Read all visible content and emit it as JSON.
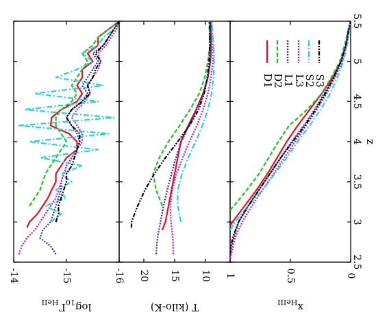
{
  "chart_data": {
    "type": "line",
    "orientation": "rotated-90-clockwise",
    "x_axis": {
      "label": "z",
      "range": [
        2.5,
        5.5
      ],
      "ticks": [
        "2.5",
        "3",
        "3.5",
        "4",
        "4.5",
        "5",
        "5.5"
      ]
    },
    "legend": {
      "placement": "inside-right-panel",
      "entries": [
        "D1",
        "D2",
        "L1",
        "L3",
        "S2",
        "S3"
      ]
    },
    "series_styles": [
      {
        "name": "D1",
        "color": "#e8101a",
        "dash": "solid"
      },
      {
        "name": "D2",
        "color": "#1fc21f",
        "dash": "dashed"
      },
      {
        "name": "L1",
        "color": "#2222dd",
        "dash": "dotted"
      },
      {
        "name": "L3",
        "color": "#e000e0",
        "dash": "dotted"
      },
      {
        "name": "S2",
        "color": "#22d2e8",
        "dash": "dash-dot"
      },
      {
        "name": "S3",
        "color": "#000000",
        "dash": "dash-dot-dot"
      }
    ],
    "panels": [
      {
        "ylabel": "log10 ΓHeII",
        "ylabel_main": "log",
        "ylabel_sub": "10",
        "ylabel_main2": "Γ",
        "ylabel_sub2": "HeII",
        "ylim": [
          -14,
          -16
        ],
        "yticks": [
          "-14",
          "-15",
          "-16"
        ],
        "series": [
          {
            "name": "D1",
            "x": [
              2.93,
              3.0,
              3.1,
              3.2,
              3.3,
              3.4,
              3.5,
              3.6,
              3.7,
              3.8,
              3.9,
              4.0,
              4.1,
              4.2,
              4.3,
              4.4,
              4.5,
              4.6,
              4.7,
              4.8,
              4.9,
              5.0,
              5.1,
              5.2,
              5.3,
              5.4,
              5.5
            ],
            "y": [
              -14.25,
              -14.3,
              -14.45,
              -14.55,
              -14.65,
              -14.72,
              -14.8,
              -14.8,
              -14.9,
              -15.0,
              -15.2,
              -15.2,
              -15.05,
              -14.7,
              -14.72,
              -14.9,
              -15.2,
              -15.3,
              -15.2,
              -15.3,
              -15.3,
              -15.5,
              -15.4,
              -15.6,
              -15.6,
              -15.8,
              -16.0
            ]
          },
          {
            "name": "D2",
            "x": [
              3.2,
              3.3,
              3.4,
              3.5,
              3.6,
              3.7,
              3.8,
              3.9,
              4.0,
              4.1,
              4.2,
              4.3,
              4.4,
              4.5,
              4.6,
              4.7,
              4.8,
              4.9,
              5.0,
              5.1,
              5.2,
              5.3,
              5.4,
              5.5
            ],
            "y": [
              -14.3,
              -14.4,
              -14.5,
              -14.55,
              -14.6,
              -14.7,
              -14.8,
              -14.9,
              -15.0,
              -14.9,
              -14.8,
              -14.8,
              -14.9,
              -15.1,
              -15.2,
              -15.1,
              -15.2,
              -15.3,
              -15.4,
              -15.3,
              -15.5,
              -15.6,
              -15.8,
              -16.0
            ]
          },
          {
            "name": "L1",
            "x": [
              2.6,
              2.7,
              2.8,
              2.9,
              3.0,
              3.1,
              3.2,
              3.3,
              3.4,
              3.5,
              3.6,
              3.7,
              3.8,
              3.9,
              4.0,
              4.1,
              4.2,
              4.3,
              4.4,
              4.5,
              4.6,
              4.7,
              4.8,
              4.9,
              5.0,
              5.1,
              5.2,
              5.3,
              5.4,
              5.5
            ],
            "y": [
              -14.8,
              -14.7,
              -14.5,
              -14.55,
              -14.7,
              -14.75,
              -14.8,
              -14.85,
              -14.9,
              -14.9,
              -14.95,
              -15.0,
              -15.1,
              -15.2,
              -15.25,
              -15.2,
              -15.1,
              -15.0,
              -15.1,
              -15.3,
              -15.4,
              -15.3,
              -15.4,
              -15.5,
              -15.6,
              -15.5,
              -15.7,
              -15.8,
              -15.9,
              -16.0
            ]
          },
          {
            "name": "L3",
            "x": [
              2.6,
              2.7,
              2.8,
              2.9,
              3.0,
              3.1,
              3.2,
              3.3,
              3.4,
              3.5,
              3.6,
              3.7,
              3.8,
              3.9,
              4.0,
              4.1,
              4.2,
              4.3,
              4.4,
              4.5,
              4.6,
              4.7,
              4.8,
              4.9,
              5.0,
              5.1,
              5.2,
              5.3,
              5.4,
              5.5
            ],
            "y": [
              -14.1,
              -14.15,
              -14.25,
              -14.4,
              -14.5,
              -14.6,
              -14.7,
              -14.8,
              -14.85,
              -14.9,
              -14.95,
              -15.0,
              -15.1,
              -15.2,
              -15.3,
              -15.3,
              -15.2,
              -15.1,
              -15.2,
              -15.35,
              -15.45,
              -15.4,
              -15.5,
              -15.6,
              -15.65,
              -15.6,
              -15.75,
              -15.85,
              -15.95,
              -16.0
            ]
          },
          {
            "name": "S2",
            "x": [
              3.0,
              3.1,
              3.2,
              3.3,
              3.4,
              3.5,
              3.6,
              3.7,
              3.8,
              3.9,
              4.0,
              4.1,
              4.2,
              4.3,
              4.4,
              4.5,
              4.6,
              4.7,
              4.8,
              4.9,
              5.0,
              5.1,
              5.2,
              5.3,
              5.4,
              5.5
            ],
            "y": [
              -14.7,
              -14.9,
              -14.6,
              -15.0,
              -14.8,
              -15.1,
              -14.9,
              -15.3,
              -14.5,
              -15.6,
              -14.3,
              -15.8,
              -14.1,
              -15.9,
              -14.2,
              -15.6,
              -14.4,
              -15.7,
              -14.8,
              -15.2,
              -15.5,
              -15.3,
              -15.6,
              -15.7,
              -15.9,
              -16.0
            ]
          },
          {
            "name": "S3",
            "x": [
              3.0,
              3.1,
              3.2,
              3.3,
              3.4,
              3.5,
              3.6,
              3.7,
              3.8,
              3.9,
              4.0,
              4.1,
              4.2,
              4.3,
              4.4,
              4.5,
              4.6,
              4.7,
              4.8,
              4.9,
              5.0,
              5.1,
              5.2,
              5.3,
              5.4,
              5.5
            ],
            "y": [
              -14.8,
              -14.85,
              -14.85,
              -14.9,
              -14.95,
              -15.0,
              -15.0,
              -15.1,
              -15.15,
              -15.2,
              -15.25,
              -15.25,
              -15.1,
              -15.0,
              -15.1,
              -15.3,
              -15.45,
              -15.4,
              -15.5,
              -15.55,
              -15.65,
              -15.55,
              -15.7,
              -15.8,
              -15.9,
              -16.0
            ]
          }
        ]
      },
      {
        "ylabel": "T (kilo-K)",
        "ylim": [
          24,
          6
        ],
        "yticks": [
          "20",
          "15",
          "10"
        ],
        "series": [
          {
            "name": "D1",
            "x": [
              2.9,
              3.0,
              3.2,
              3.4,
              3.6,
              3.8,
              4.0,
              4.2,
              4.4,
              4.6,
              4.8,
              5.0,
              5.2,
              5.5
            ],
            "y": [
              17.0,
              16.5,
              16.0,
              15.5,
              15.0,
              14.5,
              14.0,
              12.8,
              11.5,
              10.4,
              9.6,
              9.2,
              9.1,
              9.2
            ]
          },
          {
            "name": "D2",
            "x": [
              3.2,
              3.4,
              3.6,
              3.8,
              4.0,
              4.2,
              4.4,
              4.6,
              4.8,
              5.0,
              5.2,
              5.5
            ],
            "y": [
              17.0,
              18.0,
              18.5,
              17.5,
              16.0,
              14.2,
              12.5,
              11.0,
              10.1,
              9.6,
              9.3,
              9.4
            ]
          },
          {
            "name": "L1",
            "x": [
              2.6,
              2.8,
              3.0,
              3.2,
              3.4,
              3.6,
              3.8,
              4.0,
              4.2,
              4.4,
              4.6,
              4.8,
              5.0,
              5.2,
              5.5
            ],
            "y": [
              18.0,
              17.8,
              17.3,
              16.8,
              16.2,
              15.5,
              14.8,
              13.9,
              12.7,
              11.4,
              10.3,
              9.6,
              9.2,
              9.1,
              9.2
            ]
          },
          {
            "name": "L3",
            "x": [
              2.6,
              2.8,
              3.0,
              3.2,
              3.4,
              3.6,
              3.8,
              4.0,
              4.2,
              4.4,
              4.6,
              4.8,
              5.0,
              5.2,
              5.5
            ],
            "y": [
              15.2,
              15.3,
              15.6,
              15.7,
              15.4,
              14.7,
              13.7,
              12.6,
              11.4,
              10.4,
              9.6,
              9.1,
              8.8,
              8.8,
              9.0
            ]
          },
          {
            "name": "S2",
            "x": [
              3.0,
              3.2,
              3.4,
              3.6,
              3.8,
              4.0,
              4.2,
              4.4,
              4.6,
              4.8,
              5.0,
              5.2,
              5.5
            ],
            "y": [
              14.0,
              14.5,
              14.5,
              13.8,
              12.8,
              11.6,
              10.5,
              9.6,
              9.0,
              8.7,
              8.6,
              8.7,
              9.0
            ]
          },
          {
            "name": "S3",
            "x": [
              2.93,
              3.0,
              3.1,
              3.2,
              3.4,
              3.6,
              3.8,
              4.0,
              4.2,
              4.4,
              4.6,
              4.8,
              5.0,
              5.2,
              5.5
            ],
            "y": [
              22.0,
              22.0,
              21.5,
              21.0,
              19.8,
              18.3,
              16.5,
              14.5,
              12.6,
              11.1,
              10.2,
              9.7,
              9.4,
              9.3,
              9.3
            ]
          }
        ]
      },
      {
        "ylabel": "xHeIII",
        "ylabel_main": "x",
        "ylabel_sub": "HeIII",
        "ylim": [
          1,
          0
        ],
        "yticks": [
          "1",
          "0.5",
          "0"
        ],
        "series": [
          {
            "name": "D1",
            "x": [
              2.95,
              3.0,
              3.2,
              3.4,
              3.6,
              3.8,
              4.0,
              4.2,
              4.4,
              4.6,
              4.8,
              5.0,
              5.2,
              5.4,
              5.5
            ],
            "y": [
              1.0,
              0.98,
              0.88,
              0.78,
              0.69,
              0.61,
              0.53,
              0.44,
              0.34,
              0.24,
              0.15,
              0.08,
              0.04,
              0.015,
              0.0
            ]
          },
          {
            "name": "D2",
            "x": [
              3.15,
              3.2,
              3.4,
              3.6,
              3.8,
              4.0,
              4.2,
              4.4,
              4.6,
              4.8,
              5.0,
              5.2,
              5.4,
              5.5
            ],
            "y": [
              1.0,
              0.97,
              0.86,
              0.76,
              0.68,
              0.6,
              0.51,
              0.36,
              0.24,
              0.16,
              0.09,
              0.05,
              0.02,
              0.0
            ]
          },
          {
            "name": "L1",
            "x": [
              2.55,
              2.6,
              2.8,
              3.0,
              3.2,
              3.4,
              3.6,
              3.8,
              4.0,
              4.2,
              4.4,
              4.6,
              4.8,
              5.0,
              5.2,
              5.4,
              5.5
            ],
            "y": [
              1.0,
              0.99,
              0.97,
              0.93,
              0.85,
              0.76,
              0.67,
              0.58,
              0.49,
              0.39,
              0.3,
              0.22,
              0.14,
              0.08,
              0.04,
              0.015,
              0.0
            ]
          },
          {
            "name": "L3",
            "x": [
              2.55,
              2.6,
              2.8,
              3.0,
              3.2,
              3.4,
              3.6,
              3.8,
              4.0,
              4.2,
              4.4,
              4.6,
              4.8,
              5.0,
              5.2,
              5.4,
              5.5
            ],
            "y": [
              1.0,
              0.99,
              0.96,
              0.9,
              0.82,
              0.73,
              0.64,
              0.55,
              0.46,
              0.37,
              0.28,
              0.2,
              0.13,
              0.07,
              0.035,
              0.012,
              0.0
            ]
          },
          {
            "name": "S2",
            "x": [
              2.9,
              3.0,
              3.2,
              3.4,
              3.6,
              3.8,
              4.0,
              4.2,
              4.4,
              4.6,
              4.8,
              5.0,
              5.2,
              5.4,
              5.5
            ],
            "y": [
              1.0,
              0.96,
              0.85,
              0.73,
              0.63,
              0.53,
              0.44,
              0.34,
              0.25,
              0.17,
              0.11,
              0.06,
              0.03,
              0.01,
              0.0
            ]
          },
          {
            "name": "S3",
            "x": [
              2.6,
              2.8,
              3.0,
              3.2,
              3.4,
              3.6,
              3.8,
              4.0,
              4.2,
              4.4,
              4.6,
              4.8,
              5.0,
              5.2,
              5.4,
              5.5
            ],
            "y": [
              1.0,
              0.98,
              0.93,
              0.85,
              0.76,
              0.67,
              0.58,
              0.48,
              0.38,
              0.29,
              0.21,
              0.14,
              0.08,
              0.04,
              0.015,
              0.0
            ]
          }
        ]
      }
    ]
  }
}
